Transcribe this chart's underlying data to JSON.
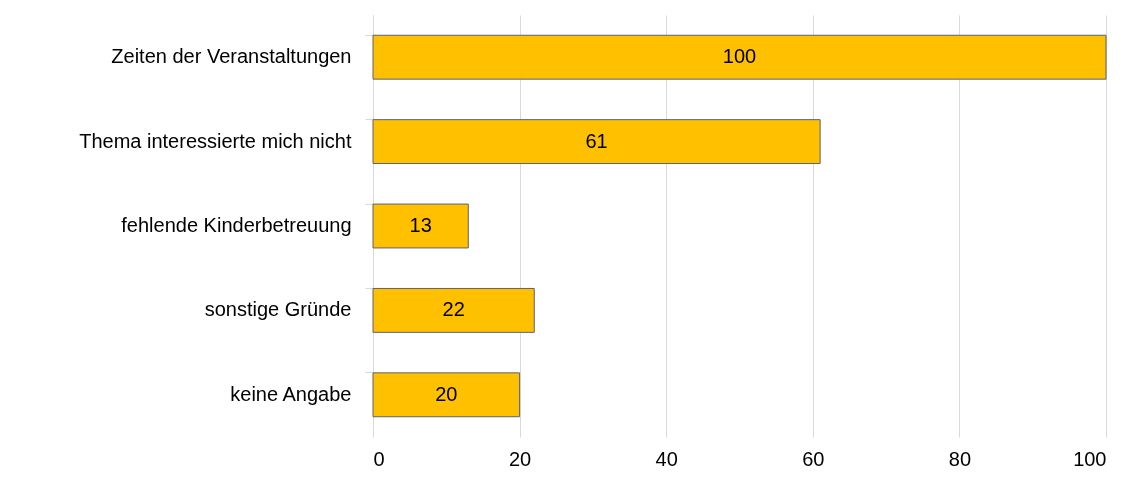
{
  "chart_data": {
    "type": "bar",
    "orientation": "horizontal",
    "categories": [
      "Zeiten der Veranstaltungen",
      "Thema interessierte mich nicht",
      "fehlende Kinderbetreuung",
      "sonstige Gründe",
      "keine Angabe"
    ],
    "values": [
      100,
      61,
      13,
      22,
      20
    ],
    "color": "#ffc000",
    "xlim": [
      0,
      100
    ],
    "xticks": [
      0,
      20,
      40,
      60,
      80,
      100
    ],
    "grid": "x",
    "data_labels": true
  }
}
